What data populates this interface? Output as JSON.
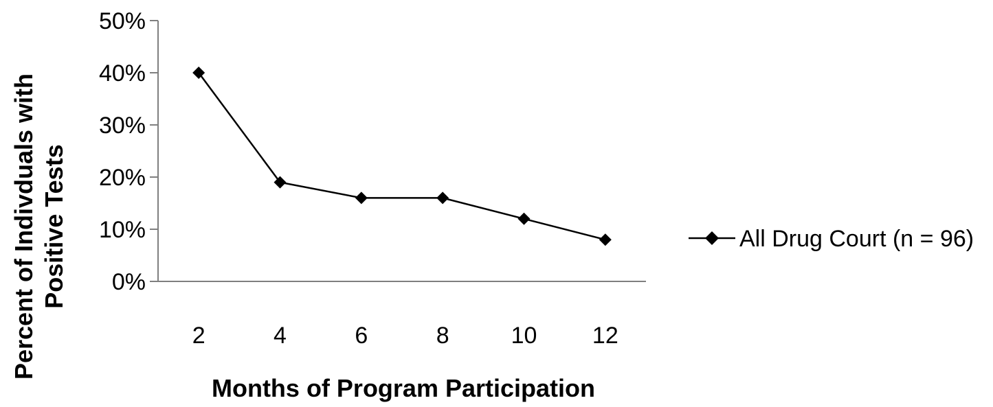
{
  "chart_data": {
    "type": "line",
    "title": "",
    "categories": [
      "2",
      "4",
      "6",
      "8",
      "10",
      "12"
    ],
    "series": [
      {
        "name": "All Drug Court (n = 96)",
        "values": [
          0.4,
          0.19,
          0.16,
          0.16,
          0.12,
          0.08
        ]
      }
    ],
    "xlabel": "Months of Program Participation",
    "ylabel_lines": [
      "Percent of Indivduals with",
      "Positive Tests"
    ],
    "yticks": [
      "0%",
      "10%",
      "20%",
      "30%",
      "40%",
      "50%"
    ],
    "ylim": [
      0,
      0.5
    ],
    "grid": false,
    "legend_position": "right",
    "colors": {
      "line": "#000000",
      "marker": "#000000",
      "axis": "#7f7f7f"
    }
  }
}
